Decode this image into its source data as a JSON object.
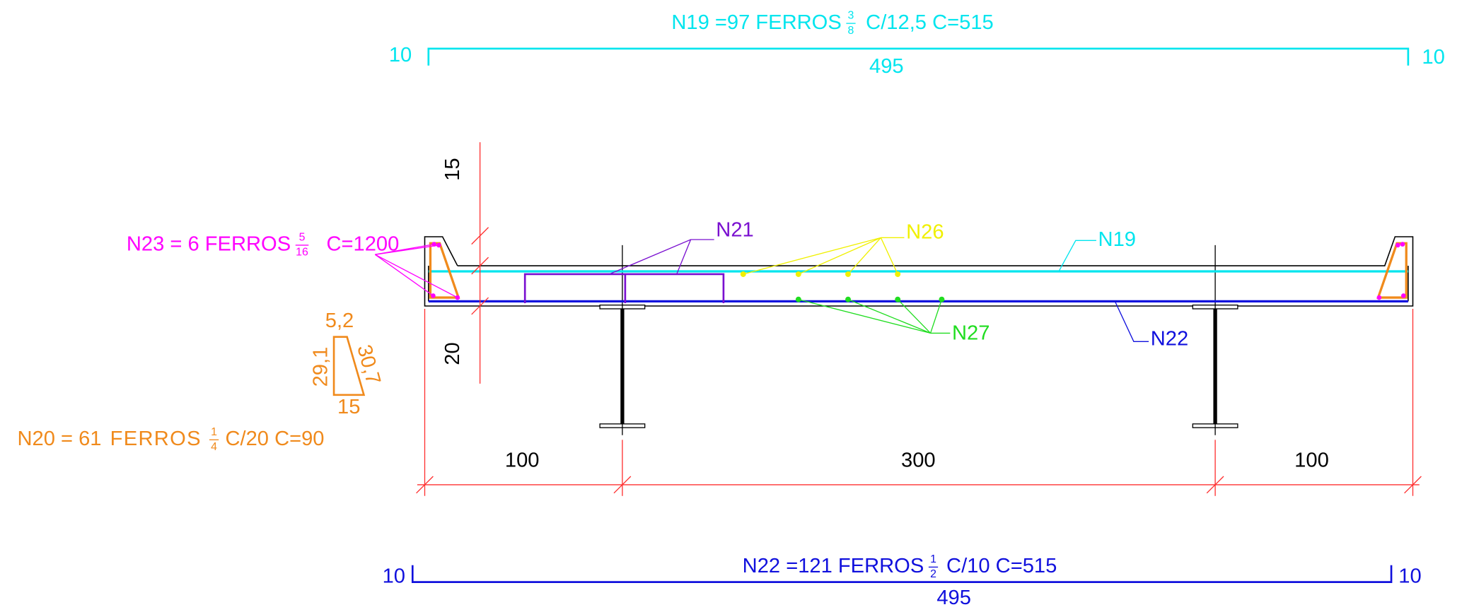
{
  "n19": {
    "prefix": "N19 =97 FERROS",
    "frac_num": "3",
    "frac_den": "8",
    "suffix": "C/12,5 C=515",
    "left": "10",
    "right": "10",
    "length": "495"
  },
  "n22": {
    "prefix": "N22 =121 FERROS",
    "frac_num": "1",
    "frac_den": "2",
    "suffix": "C/10 C=515",
    "left": "10",
    "right": "10",
    "length": "495"
  },
  "n23": {
    "prefix": "N23 = 6  FERROS",
    "frac_num": "5",
    "frac_den": "16",
    "suffix": "C=1200"
  },
  "n20": {
    "prefix": "N20 = 61",
    "word": "FERROS",
    "frac_num": "1",
    "frac_den": "4",
    "suffix": "C/20 C=90",
    "dims": [
      "5,2",
      "29,1",
      "30,7",
      "15"
    ]
  },
  "callouts": [
    "N21",
    "N26",
    "N19",
    "N22",
    "N27"
  ],
  "dimensions": {
    "vertical": [
      "15",
      "20"
    ],
    "horizontal": [
      "100",
      "300",
      "100"
    ]
  }
}
